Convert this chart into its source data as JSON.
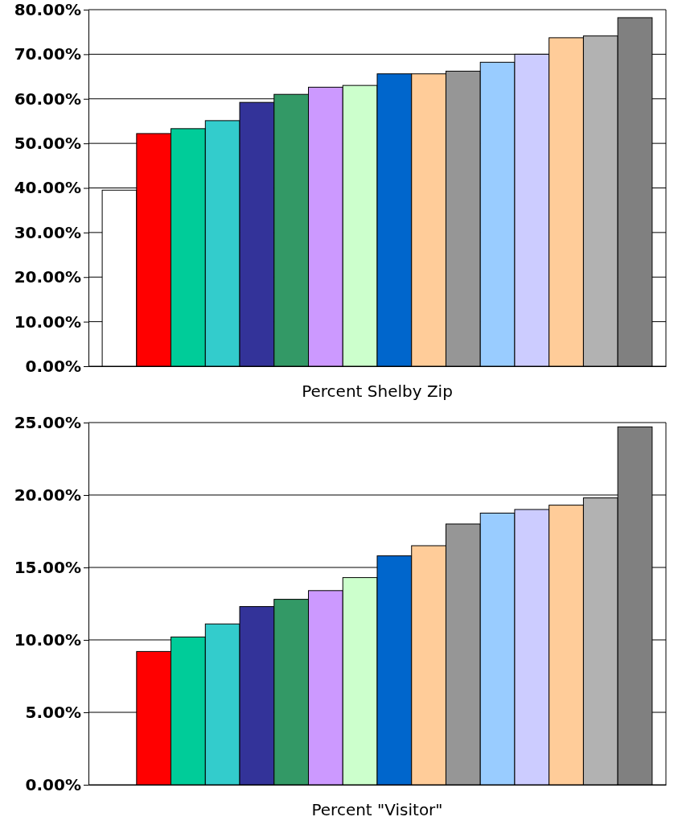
{
  "chart_data": [
    {
      "type": "bar",
      "xlabel": "Percent Shelby Zip",
      "categories": [
        null,
        null,
        null,
        null,
        null,
        null,
        null,
        null,
        null,
        null,
        null,
        null,
        null,
        null,
        null,
        null
      ],
      "values": [
        39.5,
        52.2,
        53.3,
        55.1,
        59.2,
        61.0,
        62.6,
        63.0,
        65.6,
        65.6,
        66.2,
        68.2,
        70.0,
        73.7,
        74.1,
        78.2
      ],
      "colors": [
        "#ffffff",
        "#ff0000",
        "#00cc99",
        "#33cccc",
        "#333399",
        "#339966",
        "#cc99ff",
        "#ccffcc",
        "#0066cc",
        "#ffcc99",
        "#969696",
        "#99ccff",
        "#ccccff",
        "#ffcc99",
        "#b2b2b2",
        "#808080"
      ],
      "ylim": [
        0,
        80
      ],
      "yticks": [
        {
          "value": 0,
          "label": "0.00%"
        },
        {
          "value": 10,
          "label": "10.00%"
        },
        {
          "value": 20,
          "label": "20.00%"
        },
        {
          "value": 30,
          "label": "30.00%"
        },
        {
          "value": 40,
          "label": "40.00%"
        },
        {
          "value": 50,
          "label": "50.00%"
        },
        {
          "value": 60,
          "label": "60.00%"
        },
        {
          "value": 70,
          "label": "70.00%"
        },
        {
          "value": 80,
          "label": "80.00%"
        }
      ],
      "grid": "y"
    },
    {
      "type": "bar",
      "xlabel": "Percent \"Visitor\"",
      "categories": [
        null,
        null,
        null,
        null,
        null,
        null,
        null,
        null,
        null,
        null,
        null,
        null,
        null,
        null,
        null,
        null
      ],
      "values": [
        0,
        9.2,
        10.2,
        11.1,
        12.3,
        12.8,
        13.4,
        14.3,
        15.8,
        16.5,
        18.0,
        18.75,
        19.0,
        19.3,
        19.8,
        24.7
      ],
      "colors": [
        "#ffffff",
        "#ff0000",
        "#00cc99",
        "#33cccc",
        "#333399",
        "#339966",
        "#cc99ff",
        "#ccffcc",
        "#0066cc",
        "#ffcc99",
        "#969696",
        "#99ccff",
        "#ccccff",
        "#ffcc99",
        "#b2b2b2",
        "#808080"
      ],
      "ylim": [
        0,
        25
      ],
      "yticks": [
        {
          "value": 0,
          "label": "0.00%"
        },
        {
          "value": 5,
          "label": "5.00%"
        },
        {
          "value": 10,
          "label": "10.00%"
        },
        {
          "value": 15,
          "label": "15.00%"
        },
        {
          "value": 20,
          "label": "20.00%"
        },
        {
          "value": 25,
          "label": "25.00%"
        }
      ],
      "grid": "y"
    }
  ]
}
